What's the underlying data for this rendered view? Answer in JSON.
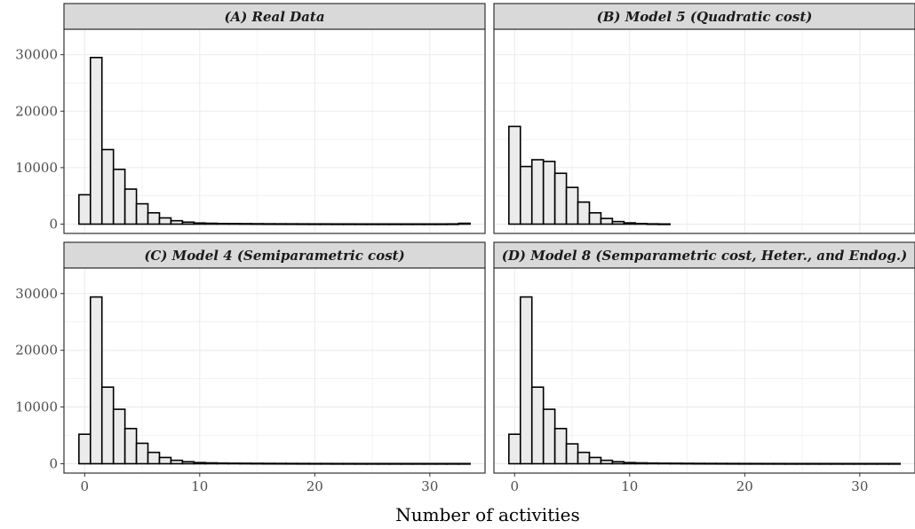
{
  "chart_data": {
    "type": "bar",
    "xlabel": "Number of activities",
    "ylabel": "",
    "xlim": [
      -1.8,
      34.8
    ],
    "ylim": [
      -1650,
      34500
    ],
    "x_ticks": [
      0,
      10,
      20,
      30
    ],
    "y_ticks": [
      0,
      10000,
      20000,
      30000
    ],
    "grid": true,
    "facet_layout": "2x2",
    "colors": {
      "bar_fill": "#ebebeb",
      "bar_stroke": "#000000",
      "strip_fill": "#d9d9d9",
      "grid": "#ebebeb",
      "panel_border": "#333333"
    },
    "panels": [
      {
        "title": "(A) Real Data",
        "x": [
          0,
          1,
          2,
          3,
          4,
          5,
          6,
          7,
          8,
          9,
          10,
          11,
          12,
          13,
          14,
          15,
          16,
          17,
          18,
          19,
          20,
          21,
          22,
          23,
          24,
          25,
          26,
          27,
          28,
          29,
          30,
          31,
          32,
          33
        ],
        "values": [
          5200,
          29500,
          13200,
          9700,
          6200,
          3600,
          2000,
          1100,
          600,
          350,
          200,
          150,
          110,
          90,
          80,
          70,
          60,
          55,
          50,
          45,
          40,
          40,
          35,
          35,
          30,
          30,
          30,
          30,
          30,
          30,
          30,
          30,
          40,
          150
        ]
      },
      {
        "title": "(B) Model 5 (Quadratic cost)",
        "x": [
          0,
          1,
          2,
          3,
          4,
          5,
          6,
          7,
          8,
          9,
          10,
          11,
          12,
          13
        ],
        "values": [
          17300,
          10200,
          11400,
          11100,
          9000,
          6500,
          3900,
          2000,
          1000,
          450,
          220,
          100,
          50,
          30
        ]
      },
      {
        "title": "(C) Model 4 (Semiparametric cost)",
        "x": [
          0,
          1,
          2,
          3,
          4,
          5,
          6,
          7,
          8,
          9,
          10,
          11,
          12,
          13,
          14,
          15,
          16,
          17,
          18,
          19,
          20,
          21,
          22,
          23,
          24,
          25,
          26,
          27,
          28,
          29,
          30,
          31,
          32,
          33
        ],
        "values": [
          5200,
          29400,
          13500,
          9600,
          6200,
          3600,
          2000,
          1100,
          600,
          350,
          200,
          150,
          110,
          90,
          80,
          70,
          60,
          55,
          50,
          45,
          40,
          40,
          35,
          35,
          30,
          30,
          30,
          30,
          30,
          30,
          30,
          30,
          30,
          30
        ]
      },
      {
        "title": "(D) Model 8 (Semparametric cost, Heter., and Endog.)",
        "x": [
          0,
          1,
          2,
          3,
          4,
          5,
          6,
          7,
          8,
          9,
          10,
          11,
          12,
          13,
          14,
          15,
          16,
          17,
          18,
          19,
          20,
          21,
          22,
          23,
          24,
          25,
          26,
          27,
          28,
          29,
          30,
          31,
          32,
          33
        ],
        "values": [
          5200,
          29400,
          13500,
          9600,
          6200,
          3500,
          2000,
          1100,
          600,
          350,
          200,
          150,
          110,
          90,
          80,
          70,
          60,
          55,
          50,
          45,
          40,
          40,
          35,
          35,
          30,
          30,
          30,
          30,
          30,
          30,
          30,
          30,
          30,
          30
        ]
      }
    ]
  }
}
